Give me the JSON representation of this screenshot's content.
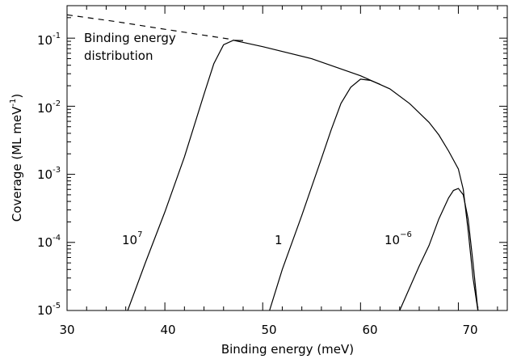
{
  "chart_data": {
    "type": "line",
    "xlabel": "Binding energy (meV)",
    "ylabel": {
      "base": "Coverage (ML meV",
      "sup": "-1",
      "end": ")"
    },
    "xlim": [
      30,
      75
    ],
    "ylim": [
      1e-05,
      0.3
    ],
    "yscale": "log",
    "grid": false,
    "x_ticks": [
      30,
      40,
      50,
      60,
      70
    ],
    "x_tick_labels": [
      "30",
      "40",
      "50",
      "60",
      "70"
    ],
    "y_ticks": [
      {
        "value": 0.1,
        "base": "10",
        "exp": "-1"
      },
      {
        "value": 0.01,
        "base": "10",
        "exp": "-2"
      },
      {
        "value": 0.001,
        "base": "10",
        "exp": "-3"
      },
      {
        "value": 0.0001,
        "base": "10",
        "exp": "-4"
      },
      {
        "value": 1e-05,
        "base": "10",
        "exp": "-5"
      }
    ],
    "series": [
      {
        "style": "dashed",
        "x": [
          30,
          35,
          40,
          45,
          47
        ],
        "y": [
          0.22,
          0.175,
          0.135,
          0.105,
          0.095
        ]
      },
      {
        "style": "solid",
        "x": [
          47,
          50,
          55,
          60,
          63,
          65,
          67,
          68,
          69,
          70,
          70.5,
          71,
          71.5,
          72
        ],
        "y": [
          0.093,
          0.075,
          0.05,
          0.028,
          0.018,
          0.011,
          0.0058,
          0.0038,
          0.0022,
          0.0012,
          0.0006,
          0.00015,
          3e-05,
          1e-05
        ]
      },
      {
        "style": "solid",
        "x": [
          36.2,
          38,
          40,
          42,
          44,
          45,
          46,
          47,
          48
        ],
        "y": [
          1e-05,
          5e-05,
          0.00028,
          0.0018,
          0.015,
          0.042,
          0.08,
          0.093,
          0.092
        ]
      },
      {
        "style": "solid",
        "x": [
          50.7,
          52,
          54,
          56,
          57,
          58,
          59,
          60,
          61,
          62
        ],
        "y": [
          1e-05,
          4e-05,
          0.00025,
          0.0017,
          0.0045,
          0.011,
          0.019,
          0.025,
          0.024,
          0.021
        ]
      },
      {
        "style": "solid",
        "x": [
          64,
          66,
          67,
          68,
          69,
          69.5,
          70,
          70.5,
          71,
          71.5,
          72
        ],
        "y": [
          1e-05,
          4.5e-05,
          9e-05,
          0.00022,
          0.00045,
          0.00058,
          0.00062,
          0.0005,
          0.00022,
          5e-05,
          1e-05
        ]
      }
    ],
    "annotations": [
      {
        "lines": [
          "Binding energy",
          "distribution"
        ]
      },
      {
        "base": "10",
        "exp": "7"
      },
      {
        "base": "1",
        "exp": ""
      },
      {
        "base": "10",
        "exp": "−6"
      }
    ]
  }
}
